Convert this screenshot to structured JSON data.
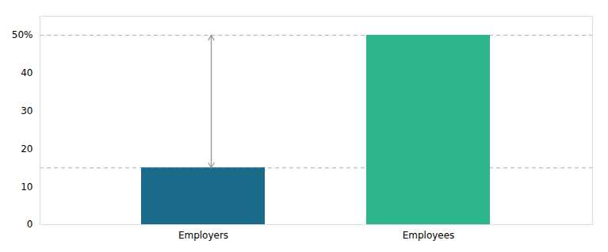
{
  "chart_data": {
    "type": "bar",
    "categories": [
      "Employers",
      "Employees"
    ],
    "values": [
      15,
      50
    ],
    "colors": [
      "#1a6b8a",
      "#2db48a"
    ],
    "ylim": [
      0,
      55
    ],
    "yticks": [
      0,
      10,
      20,
      30,
      40,
      {
        "value": 50,
        "label": "50%"
      }
    ],
    "grid": false,
    "hlines": {
      "values": [
        50,
        15
      ],
      "color": "#b0b0b0",
      "line_style": "dashed"
    },
    "arrow": {
      "category": "Employers",
      "from": 15,
      "to": 50,
      "color": "#999999"
    }
  }
}
